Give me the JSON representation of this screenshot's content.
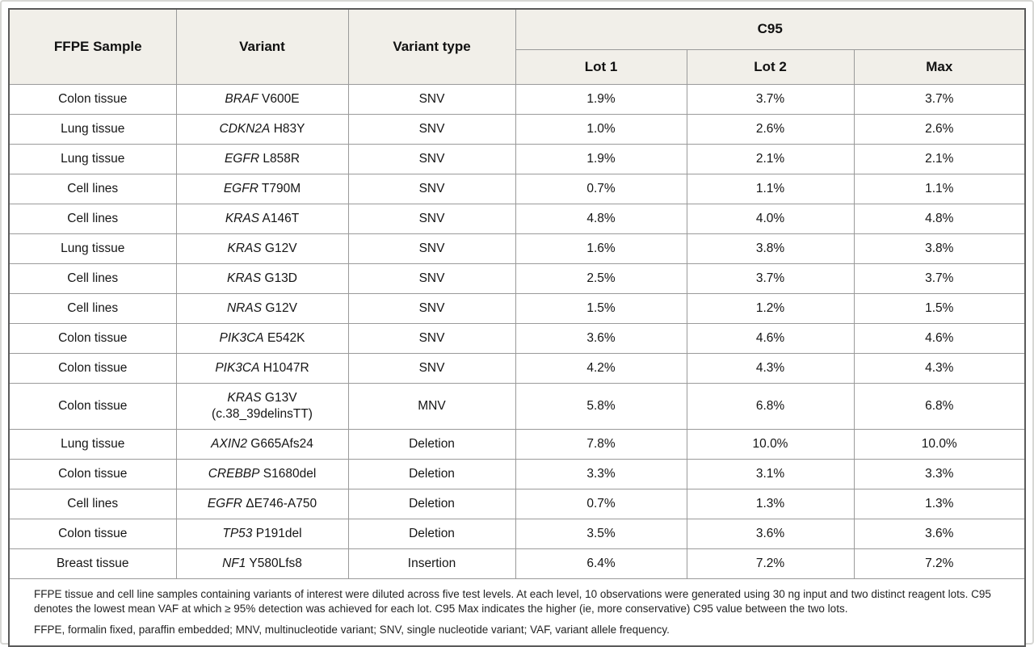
{
  "table": {
    "headers": {
      "sample": "FFPE Sample",
      "variant": "Variant",
      "variant_type": "Variant type",
      "group": "C95",
      "lots": [
        "Lot 1",
        "Lot 2",
        "Max"
      ]
    },
    "rows": [
      {
        "sample": "Colon tissue",
        "gene": "BRAF",
        "mutation": "V600E",
        "type": "SNV",
        "lot1": "1.9%",
        "lot2": "3.7%",
        "max": "3.7%"
      },
      {
        "sample": "Lung tissue",
        "gene": "CDKN2A",
        "mutation": "H83Y",
        "type": "SNV",
        "lot1": "1.0%",
        "lot2": "2.6%",
        "max": "2.6%"
      },
      {
        "sample": "Lung tissue",
        "gene": "EGFR",
        "mutation": "L858R",
        "type": "SNV",
        "lot1": "1.9%",
        "lot2": "2.1%",
        "max": "2.1%"
      },
      {
        "sample": "Cell lines",
        "gene": "EGFR",
        "mutation": "T790M",
        "type": "SNV",
        "lot1": "0.7%",
        "lot2": "1.1%",
        "max": "1.1%"
      },
      {
        "sample": "Cell lines",
        "gene": "KRAS",
        "mutation": "A146T",
        "type": "SNV",
        "lot1": "4.8%",
        "lot2": "4.0%",
        "max": "4.8%"
      },
      {
        "sample": "Lung tissue",
        "gene": "KRAS",
        "mutation": "G12V",
        "type": "SNV",
        "lot1": "1.6%",
        "lot2": "3.8%",
        "max": "3.8%"
      },
      {
        "sample": "Cell lines",
        "gene": "KRAS",
        "mutation": "G13D",
        "type": "SNV",
        "lot1": "2.5%",
        "lot2": "3.7%",
        "max": "3.7%"
      },
      {
        "sample": "Cell lines",
        "gene": "NRAS",
        "mutation": "G12V",
        "type": "SNV",
        "lot1": "1.5%",
        "lot2": "1.2%",
        "max": "1.5%"
      },
      {
        "sample": "Colon tissue",
        "gene": "PIK3CA",
        "mutation": "E542K",
        "type": "SNV",
        "lot1": "3.6%",
        "lot2": "4.6%",
        "max": "4.6%"
      },
      {
        "sample": "Colon tissue",
        "gene": "PIK3CA",
        "mutation": "H1047R",
        "type": "SNV",
        "lot1": "4.2%",
        "lot2": "4.3%",
        "max": "4.3%"
      },
      {
        "sample": "Colon tissue",
        "gene": "KRAS",
        "mutation": "G13V",
        "note": "(c.38_39delinsTT)",
        "type": "MNV",
        "lot1": "5.8%",
        "lot2": "6.8%",
        "max": "6.8%"
      },
      {
        "sample": "Lung tissue",
        "gene": "AXIN2",
        "mutation": "G665Afs24",
        "type": "Deletion",
        "lot1": "7.8%",
        "lot2": "10.0%",
        "max": "10.0%"
      },
      {
        "sample": "Colon tissue",
        "gene": "CREBBP",
        "mutation": "S1680del",
        "type": "Deletion",
        "lot1": "3.3%",
        "lot2": "3.1%",
        "max": "3.3%"
      },
      {
        "sample": "Cell lines",
        "gene": "EGFR",
        "mutation": "ΔE746-A750",
        "type": "Deletion",
        "lot1": "0.7%",
        "lot2": "1.3%",
        "max": "1.3%"
      },
      {
        "sample": "Colon tissue",
        "gene": "TP53",
        "mutation": "P191del",
        "type": "Deletion",
        "lot1": "3.5%",
        "lot2": "3.6%",
        "max": "3.6%"
      },
      {
        "sample": "Breast tissue",
        "gene": "NF1",
        "mutation": "Y580Lfs8",
        "type": "Insertion",
        "lot1": "6.4%",
        "lot2": "7.2%",
        "max": "7.2%"
      }
    ],
    "footnotes": [
      "FFPE tissue and cell line samples containing variants of interest were diluted across five test levels. At each level, 10 observations were generated using 30 ng input and two distinct reagent lots. C95 denotes the lowest mean VAF at which ≥ 95% detection was achieved for each lot. C95 Max indicates the higher (ie, more conservative) C95 value between the two lots.",
      "FFPE, formalin fixed, paraffin embedded; MNV, multinucleotide variant; SNV, single nucleotide variant; VAF, variant allele frequency."
    ]
  },
  "colors": {
    "header_bg": "#f1efe9",
    "inner_border": "#9a9a9a",
    "outer_border": "#5a5a5a",
    "text": "#141414"
  }
}
